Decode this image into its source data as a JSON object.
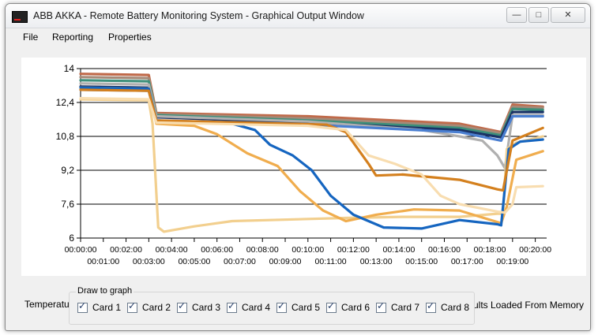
{
  "window": {
    "title": "ABB AKKA - Remote Battery Monitoring System - Graphical Output Window",
    "controls": {
      "minimize": "—",
      "maximize": "□",
      "close": "✕"
    }
  },
  "menu": {
    "file": "File",
    "reporting": "Reporting",
    "properties": "Properties"
  },
  "bottom": {
    "left_text": "Temperatu",
    "right_text": "ults Loaded From Memory",
    "group_title": "Draw to graph",
    "cards": [
      {
        "label": "Card 1",
        "checked": true
      },
      {
        "label": "Card 2",
        "checked": true
      },
      {
        "label": "Card 3",
        "checked": true
      },
      {
        "label": "Card 4",
        "checked": true
      },
      {
        "label": "Card 5",
        "checked": true
      },
      {
        "label": "Card 6",
        "checked": true
      },
      {
        "label": "Card 7",
        "checked": true
      },
      {
        "label": "Card 8",
        "checked": true
      }
    ]
  },
  "chart_data": {
    "type": "line",
    "ylim": [
      6,
      14
    ],
    "y_ticks": [
      "14",
      "12,4",
      "10,8",
      "9,2",
      "7,6",
      "6"
    ],
    "y_tick_values": [
      14,
      12.4,
      10.8,
      9.2,
      7.6,
      6
    ],
    "xlim": [
      0,
      1230
    ],
    "x_ticks_top": [
      "00:00:00",
      "00:02:00",
      "00:04:00",
      "00:06:00",
      "00:08:00",
      "00:10:00",
      "00:12:00",
      "00:14:00",
      "00:16:00",
      "00:18:00",
      "00:20:00"
    ],
    "x_ticks_bottom": [
      "00:01:00",
      "00:03:00",
      "00:05:00",
      "00:07:00",
      "00:09:00",
      "00:11:00",
      "00:13:00",
      "00:15:00",
      "00:17:00",
      "00:19:00"
    ],
    "grid": "horizontal",
    "series": [
      {
        "color": "#c06a4a",
        "points": [
          [
            0,
            13.75
          ],
          [
            180,
            13.7
          ],
          [
            200,
            11.9
          ],
          [
            600,
            11.75
          ],
          [
            1000,
            11.4
          ],
          [
            1110,
            11.0
          ],
          [
            1140,
            12.3
          ],
          [
            1220,
            12.2
          ]
        ]
      },
      {
        "color": "#a68a78",
        "points": [
          [
            0,
            13.6
          ],
          [
            180,
            13.55
          ],
          [
            200,
            11.85
          ],
          [
            600,
            11.65
          ],
          [
            1000,
            11.3
          ],
          [
            1110,
            10.95
          ],
          [
            1140,
            12.2
          ],
          [
            1220,
            12.15
          ]
        ]
      },
      {
        "color": "#3d8f7a",
        "points": [
          [
            0,
            13.45
          ],
          [
            180,
            13.4
          ],
          [
            200,
            11.8
          ],
          [
            600,
            11.55
          ],
          [
            1000,
            11.2
          ],
          [
            1110,
            10.85
          ],
          [
            1140,
            12.1
          ],
          [
            1220,
            12.05
          ]
        ]
      },
      {
        "color": "#1a3366",
        "points": [
          [
            0,
            13.15
          ],
          [
            180,
            13.1
          ],
          [
            200,
            11.7
          ],
          [
            600,
            11.45
          ],
          [
            1000,
            11.1
          ],
          [
            1110,
            10.75
          ],
          [
            1140,
            11.95
          ],
          [
            1220,
            11.95
          ]
        ]
      },
      {
        "color": "#b0b0b0",
        "points": [
          [
            0,
            13.3
          ],
          [
            180,
            13.25
          ],
          [
            200,
            11.75
          ],
          [
            600,
            11.5
          ],
          [
            900,
            11.1
          ],
          [
            1000,
            10.8
          ],
          [
            1060,
            10.6
          ],
          [
            1100,
            9.9
          ],
          [
            1120,
            9.3
          ],
          [
            1140,
            11.8
          ],
          [
            1220,
            11.8
          ]
        ]
      },
      {
        "color": "#4a7fd1",
        "points": [
          [
            0,
            13.0
          ],
          [
            180,
            12.95
          ],
          [
            200,
            11.55
          ],
          [
            600,
            11.35
          ],
          [
            1000,
            11.0
          ],
          [
            1110,
            10.6
          ],
          [
            1140,
            11.75
          ],
          [
            1220,
            11.75
          ]
        ]
      },
      {
        "color": "#f2cf8e",
        "points": [
          [
            0,
            12.55
          ],
          [
            180,
            12.5
          ],
          [
            190,
            11.4
          ],
          [
            205,
            6.5
          ],
          [
            220,
            6.3
          ],
          [
            300,
            6.55
          ],
          [
            400,
            6.8
          ],
          [
            700,
            6.95
          ],
          [
            850,
            7.0
          ],
          [
            1000,
            7.0
          ],
          [
            1100,
            7.15
          ],
          [
            1115,
            7.15
          ],
          [
            1125,
            10.2
          ],
          [
            1150,
            10.5
          ],
          [
            1220,
            10.8
          ]
        ]
      },
      {
        "color": "#f0ad4e",
        "points": [
          [
            0,
            13.1
          ],
          [
            180,
            13.05
          ],
          [
            200,
            11.4
          ],
          [
            300,
            11.3
          ],
          [
            360,
            10.9
          ],
          [
            440,
            10.0
          ],
          [
            520,
            9.4
          ],
          [
            580,
            8.2
          ],
          [
            640,
            7.3
          ],
          [
            700,
            6.8
          ],
          [
            780,
            7.1
          ],
          [
            880,
            7.35
          ],
          [
            1000,
            7.3
          ],
          [
            1110,
            6.7
          ],
          [
            1125,
            7.5
          ],
          [
            1150,
            9.7
          ],
          [
            1220,
            10.1
          ]
        ]
      },
      {
        "color": "#1565c0",
        "points": [
          [
            0,
            13.1
          ],
          [
            180,
            13.05
          ],
          [
            200,
            11.55
          ],
          [
            400,
            11.4
          ],
          [
            460,
            11.1
          ],
          [
            500,
            10.4
          ],
          [
            560,
            9.9
          ],
          [
            610,
            9.2
          ],
          [
            660,
            8.0
          ],
          [
            720,
            7.1
          ],
          [
            800,
            6.5
          ],
          [
            900,
            6.45
          ],
          [
            1000,
            6.85
          ],
          [
            1100,
            6.65
          ],
          [
            1110,
            6.6
          ],
          [
            1130,
            10.2
          ],
          [
            1160,
            10.55
          ],
          [
            1220,
            10.65
          ]
        ]
      },
      {
        "color": "#d4801e",
        "points": [
          [
            0,
            13.0
          ],
          [
            180,
            12.95
          ],
          [
            200,
            11.55
          ],
          [
            650,
            11.35
          ],
          [
            700,
            11.0
          ],
          [
            760,
            9.5
          ],
          [
            780,
            8.95
          ],
          [
            850,
            9.0
          ],
          [
            1000,
            8.75
          ],
          [
            1100,
            8.3
          ],
          [
            1115,
            8.25
          ],
          [
            1140,
            10.6
          ],
          [
            1220,
            11.2
          ]
        ]
      },
      {
        "color": "#f8ddb0",
        "points": [
          [
            0,
            12.6
          ],
          [
            180,
            12.55
          ],
          [
            200,
            11.45
          ],
          [
            600,
            11.3
          ],
          [
            700,
            11.1
          ],
          [
            760,
            9.9
          ],
          [
            830,
            9.5
          ],
          [
            900,
            9.0
          ],
          [
            950,
            8.0
          ],
          [
            1000,
            7.6
          ],
          [
            1100,
            7.25
          ],
          [
            1120,
            7.2
          ],
          [
            1140,
            7.6
          ],
          [
            1150,
            8.4
          ],
          [
            1220,
            8.45
          ]
        ]
      }
    ]
  }
}
